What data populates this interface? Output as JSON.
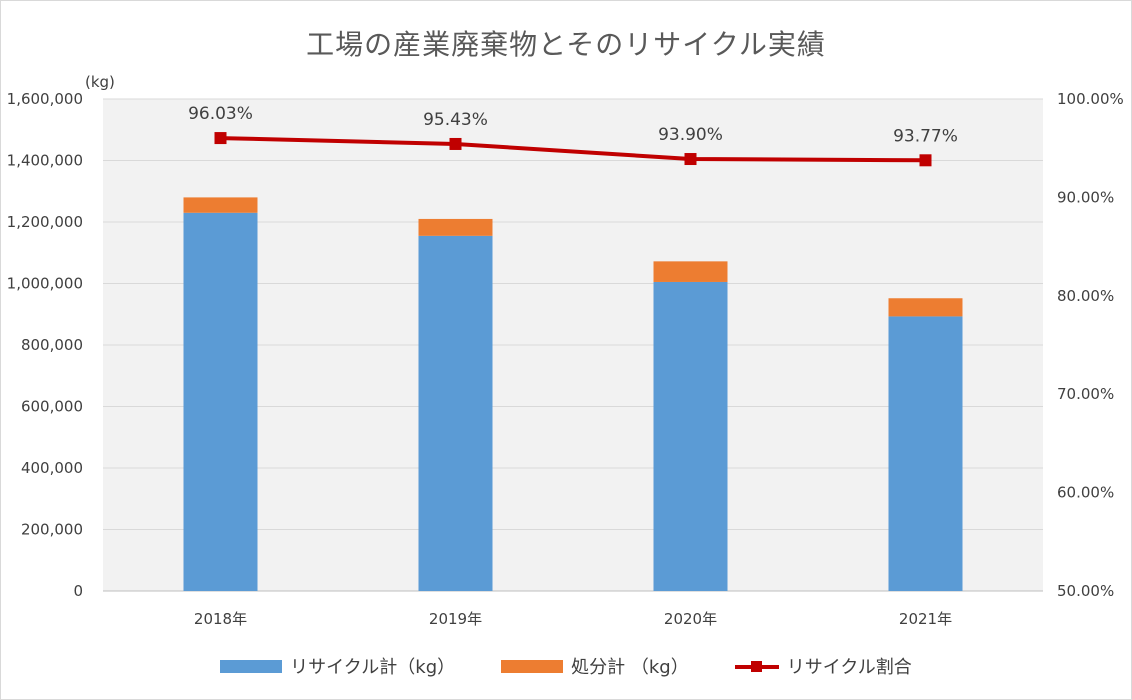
{
  "colors": {
    "recycle": "#5B9BD5",
    "disposal": "#ED7D31",
    "ratio": "#C00000",
    "plot_bg": "#F2F2F2",
    "grid": "#D9D9D9",
    "text": "#404040"
  },
  "chart_data": {
    "type": "bar",
    "title": "工場の産業廃棄物とそのリサイクル実績",
    "ylabel": "(kg)",
    "categories": [
      "2018年",
      "2019年",
      "2020年",
      "2021年"
    ],
    "series": [
      {
        "name": "リサイクル計（kg）",
        "type": "bar",
        "stacked": true,
        "axis": "left",
        "values": [
          1230000,
          1155000,
          1005000,
          893000
        ]
      },
      {
        "name": "処分計 （kg）",
        "type": "bar",
        "stacked": true,
        "axis": "left",
        "values": [
          50000,
          55000,
          67000,
          59000
        ]
      },
      {
        "name": "リサイクル割合",
        "type": "line",
        "axis": "right",
        "values": [
          96.03,
          95.43,
          93.9,
          93.77
        ],
        "labels": [
          "96.03%",
          "95.43%",
          "93.90%",
          "93.77%"
        ]
      }
    ],
    "ylim": [
      0,
      1600000
    ],
    "y_ticks": [
      "0",
      "200,000",
      "400,000",
      "600,000",
      "800,000",
      "1,000,000",
      "1,200,000",
      "1,400,000",
      "1,600,000"
    ],
    "y2lim": [
      50,
      100
    ],
    "y2_ticks": [
      "50.00%",
      "60.00%",
      "70.00%",
      "80.00%",
      "90.00%",
      "100.00%"
    ],
    "grid": true,
    "legend_position": "bottom"
  }
}
